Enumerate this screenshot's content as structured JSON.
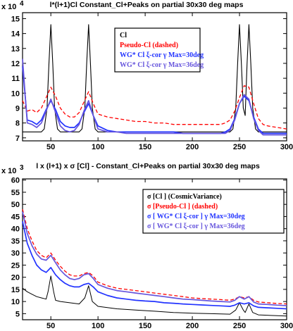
{
  "chart_data": [
    {
      "type": "line",
      "title": "l*(l+1)Cl Constant_Cl+Peaks on partial 30x30 deg maps",
      "y_multiplier": "x 10",
      "y_multiplier_exp": "4",
      "xlim": [
        20,
        300
      ],
      "ylim": [
        6.8,
        15.4
      ],
      "xticks": [
        50,
        100,
        150,
        200,
        250,
        300
      ],
      "yticks": [
        7,
        8,
        9,
        10,
        11,
        12,
        13,
        14,
        15
      ],
      "legend_position": "upper-center",
      "legend": [
        {
          "label": "Cl",
          "color": "#000000",
          "dashed": false
        },
        {
          "label": "Pseudo-Cl (dashed)",
          "color": "#ff0000",
          "dashed": true
        },
        {
          "label": "WG* Cl ξ-cor γ Max=30deg",
          "color": "#2233ff",
          "dashed": false
        },
        {
          "label": "WG* Cl ξ-cor γ Max=36deg",
          "color": "#6655dd",
          "dashed": false
        }
      ],
      "series": [
        {
          "name": "Cl",
          "color": "#000000",
          "dashed": false,
          "width": 1.1,
          "x": [
            20,
            40,
            43,
            46,
            48,
            50,
            52,
            54,
            57,
            60,
            80,
            83,
            86,
            88,
            90,
            92,
            94,
            97,
            100,
            240,
            243,
            246,
            248,
            250,
            252,
            254,
            256,
            258,
            260,
            262,
            264,
            267,
            270,
            300
          ],
          "y": [
            7.4,
            7.4,
            7.6,
            9.0,
            12.0,
            14.6,
            12.0,
            9.0,
            7.6,
            7.4,
            7.4,
            7.6,
            9.0,
            12.0,
            14.6,
            12.0,
            9.0,
            7.6,
            7.4,
            7.4,
            7.6,
            9.0,
            12.0,
            14.6,
            12.0,
            9.0,
            8.5,
            12.0,
            14.6,
            12.0,
            9.0,
            7.6,
            7.4,
            7.4
          ]
        },
        {
          "name": "Pseudo-Cl (dashed)",
          "color": "#ff0000",
          "dashed": true,
          "width": 1.3,
          "x": [
            20,
            25,
            30,
            35,
            40,
            45,
            50,
            55,
            60,
            65,
            70,
            75,
            80,
            85,
            90,
            95,
            100,
            110,
            120,
            130,
            140,
            150,
            160,
            170,
            180,
            190,
            200,
            210,
            220,
            230,
            235,
            240,
            245,
            250,
            255,
            260,
            265,
            270,
            275,
            280,
            290,
            300
          ],
          "y": [
            9.5,
            8.8,
            8.9,
            8.7,
            9.0,
            9.7,
            10.4,
            9.8,
            9.0,
            8.6,
            8.4,
            8.4,
            8.7,
            9.4,
            10.1,
            9.3,
            8.6,
            8.4,
            8.3,
            8.2,
            8.1,
            8.1,
            8.0,
            8.0,
            7.9,
            7.9,
            7.9,
            7.9,
            7.9,
            7.9,
            8.0,
            8.2,
            8.8,
            9.7,
            10.5,
            10.4,
            9.3,
            8.3,
            7.9,
            7.8,
            7.7,
            7.6
          ]
        },
        {
          "name": "WG* Cl ξ-cor γ Max=30deg",
          "color": "#2233ff",
          "dashed": false,
          "width": 1.7,
          "x": [
            20,
            25,
            30,
            35,
            40,
            45,
            50,
            55,
            60,
            65,
            70,
            75,
            80,
            85,
            90,
            95,
            100,
            110,
            120,
            130,
            140,
            150,
            160,
            170,
            180,
            190,
            200,
            210,
            220,
            230,
            235,
            240,
            245,
            250,
            255,
            260,
            265,
            270,
            275,
            280,
            290,
            300
          ],
          "y": [
            11.8,
            8.2,
            8.1,
            7.9,
            8.2,
            8.9,
            9.5,
            8.9,
            8.1,
            7.8,
            7.7,
            7.7,
            8.0,
            8.7,
            9.3,
            8.5,
            7.8,
            7.5,
            7.4,
            7.4,
            7.4,
            7.4,
            7.4,
            7.4,
            7.4,
            7.3,
            7.3,
            7.3,
            7.3,
            7.3,
            7.4,
            7.6,
            8.3,
            9.3,
            9.8,
            9.5,
            8.4,
            7.6,
            7.3,
            7.3,
            7.3,
            7.3
          ]
        },
        {
          "name": "WG* Cl ξ-cor γ Max=36deg",
          "color": "#6655dd",
          "dashed": false,
          "width": 1.7,
          "x": [
            20,
            25,
            30,
            35,
            40,
            45,
            50,
            55,
            60,
            65,
            70,
            75,
            80,
            85,
            90,
            95,
            100,
            110,
            120,
            130,
            140,
            150,
            160,
            170,
            180,
            190,
            200,
            210,
            220,
            230,
            235,
            240,
            245,
            250,
            255,
            260,
            265,
            270,
            275,
            280,
            290,
            300
          ],
          "y": [
            12.3,
            8.0,
            7.9,
            7.7,
            8.0,
            8.8,
            9.6,
            8.7,
            7.8,
            7.5,
            7.4,
            7.5,
            7.9,
            8.8,
            9.5,
            8.5,
            7.6,
            7.4,
            7.4,
            7.3,
            7.3,
            7.3,
            7.3,
            7.3,
            7.3,
            7.3,
            7.3,
            7.3,
            7.3,
            7.3,
            7.3,
            7.5,
            8.2,
            9.3,
            9.9,
            9.6,
            8.3,
            7.5,
            7.2,
            7.2,
            7.2,
            7.2
          ]
        }
      ]
    },
    {
      "type": "line",
      "title": "l x (l+1) x σ [Cl]  -  Constant_Cl+Peaks on partial 30x30 deg maps",
      "y_multiplier": "x 10",
      "y_multiplier_exp": "3",
      "xlim": [
        20,
        300
      ],
      "ylim": [
        2.5,
        60.5
      ],
      "xticks": [
        50,
        100,
        150,
        200,
        250,
        300
      ],
      "yticks": [
        5,
        10,
        15,
        20,
        25,
        30,
        35,
        40,
        45,
        50,
        55,
        60
      ],
      "legend_position": "upper-right",
      "legend": [
        {
          "label": "σ [Cl ] (CosmicVariance)",
          "color": "#000000",
          "dashed": false
        },
        {
          "label": "σ [Pseudo-Cl ] (dashed)",
          "color": "#ff0000",
          "dashed": true
        },
        {
          "label": "σ [ WG* Cl ξ-cor ] γ Max=30deg",
          "color": "#2233ff",
          "dashed": false
        },
        {
          "label": "σ [ WG* Cl ξ-cor ] γ Max=36deg",
          "color": "#6655dd",
          "dashed": false
        }
      ],
      "series": [
        {
          "name": "σ [Cl ] (CosmicVariance)",
          "color": "#000000",
          "dashed": false,
          "width": 1.0,
          "x": [
            20,
            25,
            30,
            35,
            40,
            45,
            47,
            50,
            53,
            55,
            60,
            70,
            80,
            86,
            90,
            94,
            100,
            120,
            140,
            160,
            180,
            200,
            220,
            240,
            246,
            250,
            254,
            256,
            260,
            264,
            270,
            300
          ],
          "y": [
            15.5,
            14.0,
            13.0,
            12.0,
            11.5,
            11.0,
            14.0,
            20.5,
            14.0,
            10.5,
            10.0,
            9.5,
            9.0,
            11.5,
            16.5,
            10.0,
            8.0,
            7.0,
            6.5,
            6.0,
            5.5,
            5.2,
            5.0,
            4.8,
            6.5,
            9.5,
            6.5,
            5.5,
            9.0,
            5.5,
            4.5,
            4.0
          ]
        },
        {
          "name": "σ [Pseudo-Cl ] (dashed)",
          "color": "#ff0000",
          "dashed": true,
          "width": 1.3,
          "x": [
            20,
            25,
            30,
            35,
            40,
            45,
            50,
            55,
            60,
            65,
            70,
            75,
            80,
            85,
            90,
            95,
            100,
            110,
            120,
            130,
            140,
            150,
            160,
            170,
            180,
            190,
            200,
            210,
            220,
            230,
            240,
            245,
            250,
            255,
            260,
            265,
            270,
            280,
            290,
            300
          ],
          "y": [
            48.0,
            40.0,
            35.0,
            31.0,
            29.0,
            28.0,
            30.0,
            27.0,
            24.5,
            22.5,
            21.0,
            20.5,
            20.5,
            21.5,
            22.0,
            20.5,
            18.0,
            16.5,
            15.5,
            15.0,
            14.5,
            14.0,
            13.5,
            13.0,
            12.5,
            12.0,
            11.5,
            11.2,
            11.0,
            10.8,
            10.5,
            11.0,
            12.0,
            11.5,
            12.0,
            10.5,
            9.8,
            9.5,
            9.2,
            9.0
          ]
        },
        {
          "name": "σ [ WG* Cl ξ-cor ] γ Max=30deg",
          "color": "#2233ff",
          "dashed": false,
          "width": 1.7,
          "x": [
            20,
            25,
            30,
            35,
            40,
            45,
            50,
            55,
            60,
            65,
            70,
            75,
            80,
            85,
            90,
            95,
            100,
            110,
            120,
            130,
            140,
            150,
            160,
            170,
            180,
            190,
            200,
            210,
            220,
            230,
            240,
            245,
            250,
            255,
            260,
            265,
            270,
            280,
            290,
            300
          ],
          "y": [
            43.0,
            34.0,
            29.0,
            25.0,
            23.0,
            22.0,
            24.0,
            21.0,
            19.0,
            17.5,
            16.5,
            16.0,
            16.0,
            17.0,
            17.5,
            16.0,
            14.0,
            12.5,
            11.5,
            11.0,
            10.5,
            10.2,
            10.0,
            9.5,
            9.3,
            9.0,
            8.8,
            8.6,
            8.4,
            8.2,
            8.0,
            8.5,
            9.5,
            9.0,
            9.5,
            8.2,
            7.6,
            7.4,
            7.2,
            7.0
          ]
        },
        {
          "name": "σ [ WG* Cl ξ-cor ] γ Max=36deg",
          "color": "#6655dd",
          "dashed": false,
          "width": 1.7,
          "x": [
            20,
            25,
            30,
            35,
            40,
            45,
            50,
            55,
            60,
            65,
            70,
            75,
            80,
            85,
            90,
            95,
            100,
            110,
            120,
            130,
            140,
            150,
            160,
            170,
            180,
            190,
            200,
            210,
            220,
            230,
            240,
            245,
            250,
            255,
            260,
            265,
            270,
            280,
            290,
            300
          ],
          "y": [
            47.0,
            38.0,
            33.0,
            29.5,
            27.5,
            27.0,
            29.0,
            26.0,
            23.0,
            21.0,
            19.5,
            19.0,
            19.5,
            21.0,
            21.5,
            19.5,
            17.0,
            15.5,
            14.5,
            14.0,
            13.5,
            13.0,
            12.5,
            12.0,
            11.5,
            11.0,
            10.8,
            10.5,
            10.2,
            10.0,
            9.8,
            10.5,
            12.0,
            11.0,
            12.0,
            9.8,
            9.0,
            8.8,
            8.5,
            8.3
          ]
        }
      ]
    }
  ]
}
